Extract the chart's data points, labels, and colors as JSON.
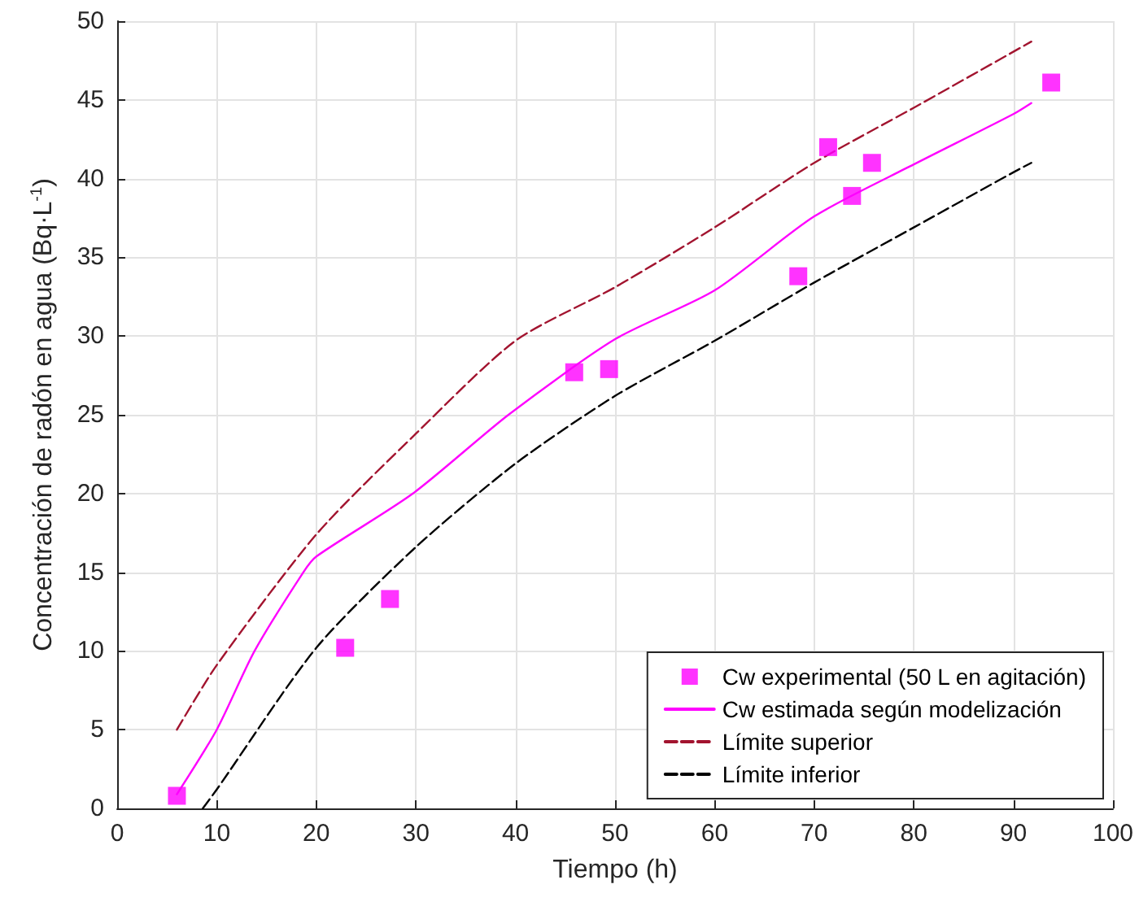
{
  "chart_data": {
    "type": "line",
    "xlabel": "Tiempo (h)",
    "ylabel": "Concentración de radón en agua (Bq·L$^{-1}$)",
    "xlim": [
      0,
      100
    ],
    "xticks": [
      0,
      10,
      20,
      30,
      40,
      50,
      60,
      70,
      80,
      90,
      100
    ],
    "ylim": [
      0,
      50
    ],
    "yticks": [
      0,
      5,
      10,
      15,
      20,
      25,
      30,
      35,
      40,
      45,
      50
    ],
    "grid": true,
    "legend": "bottom right",
    "series": [
      {
        "name": "Cw experimental (50 L en agitación)",
        "type": "scatter",
        "marker": "square",
        "color": "#ff00ff",
        "x": [
          6.0,
          22.9,
          27.4,
          45.9,
          49.4,
          68.4,
          71.4,
          73.8,
          75.8,
          93.8
        ],
        "values": [
          0.8,
          10.2,
          13.3,
          27.7,
          27.9,
          33.8,
          42.0,
          38.9,
          41.0,
          46.1
        ]
      },
      {
        "name": "Cw estimada según modelización",
        "type": "line",
        "line_style": "solid",
        "color": "#ff00ff",
        "x": [
          6,
          10,
          13.8,
          18.7,
          20,
          29.7,
          39.3,
          50,
          60,
          70,
          80,
          90,
          91.8
        ],
        "values": [
          0.9,
          5,
          10,
          15,
          16.0,
          20,
          25,
          29.8,
          32.9,
          37.6,
          40.9,
          44.1,
          44.8
        ]
      },
      {
        "name": "Límite superior",
        "type": "line",
        "line_style": "dashed",
        "color": "#a2142f",
        "x": [
          6,
          10,
          20,
          30,
          40,
          50,
          60,
          70,
          80,
          91.8
        ],
        "values": [
          5,
          9.1,
          17.4,
          23.8,
          29.7,
          33.1,
          36.9,
          41.0,
          44.5,
          48.7
        ]
      },
      {
        "name": "Límite inferior",
        "type": "line",
        "line_style": "dashed",
        "color": "#000000",
        "x": [
          8.6,
          10,
          20,
          30,
          40,
          50,
          60,
          70,
          80,
          90,
          91.8
        ],
        "values": [
          0,
          1.2,
          10.2,
          16.6,
          21.9,
          26.2,
          29.7,
          33.4,
          36.9,
          40.4,
          41.0
        ]
      }
    ]
  }
}
